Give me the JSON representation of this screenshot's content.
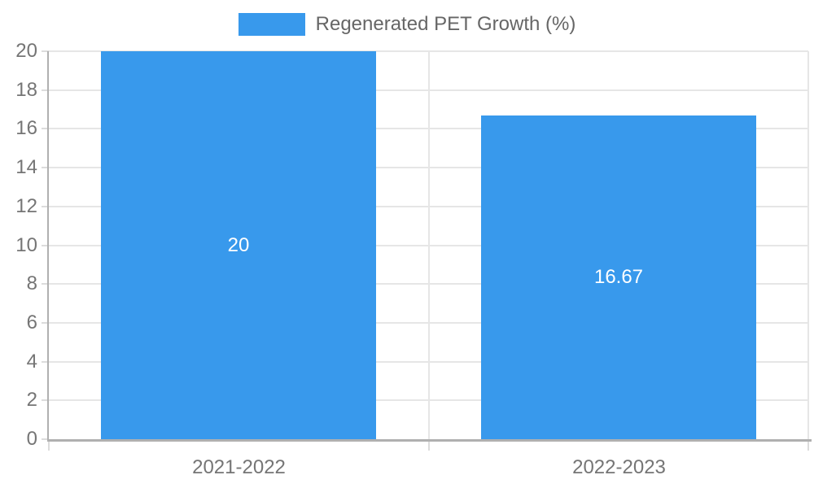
{
  "legend": {
    "label": "Regenerated PET Growth (%)"
  },
  "chart_data": {
    "type": "bar",
    "title": "",
    "categories": [
      "2021-2022",
      "2022-2023"
    ],
    "series": [
      {
        "name": "Regenerated PET Growth (%)",
        "values": [
          20,
          16.67
        ]
      }
    ],
    "value_labels": [
      "20",
      "16.67"
    ],
    "xlabel": "",
    "ylabel": "",
    "ylim": [
      0,
      20
    ],
    "yticks": [
      0,
      2,
      4,
      6,
      8,
      10,
      12,
      14,
      16,
      18,
      20
    ],
    "grid": true,
    "legend_position": "top-center",
    "bar_width_fraction": 0.724,
    "colors": {
      "bar": "#3899ec",
      "grid": "#e6e6e6",
      "axis": "#b0b0b0",
      "tick": "#dcdcdc",
      "tick_label": "#757575",
      "legend_text": "#666666",
      "value_label": "#ffffff"
    }
  }
}
